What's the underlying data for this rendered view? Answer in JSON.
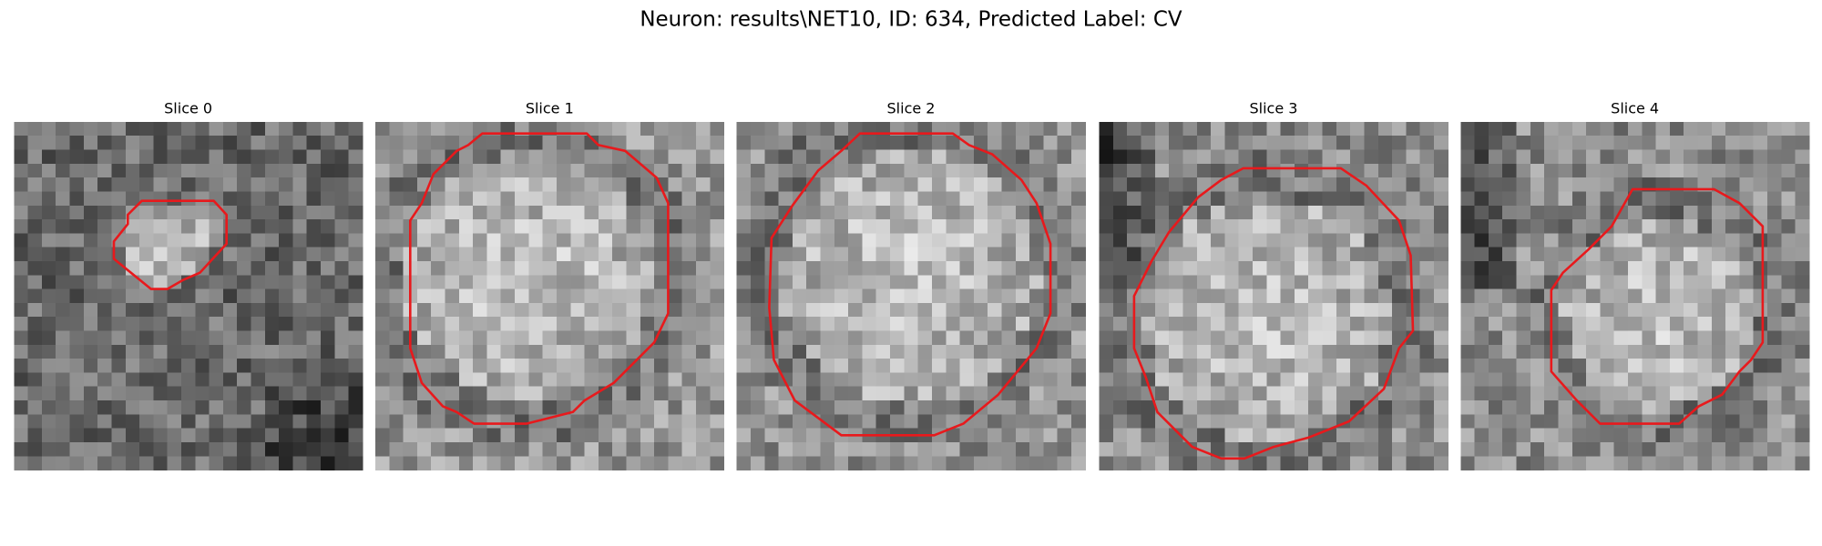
{
  "title": "Neuron: results\\NET10, ID: 634, Predicted Label: CV",
  "panels": [
    {
      "title": "Slice 0"
    },
    {
      "title": "Slice 1"
    },
    {
      "title": "Slice 2"
    },
    {
      "title": "Slice 3"
    },
    {
      "title": "Slice 4"
    }
  ]
}
